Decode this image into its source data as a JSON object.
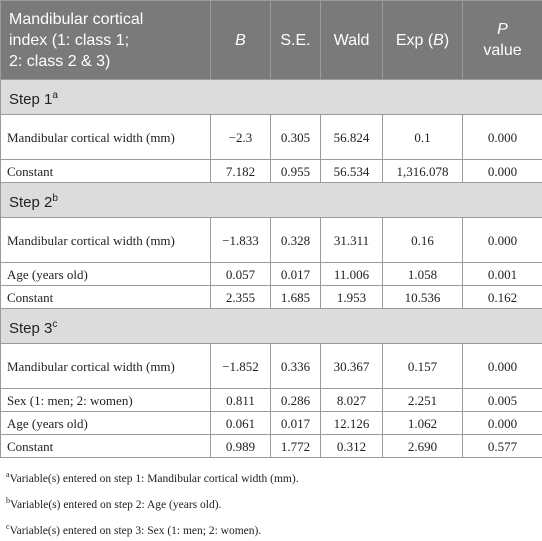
{
  "header": {
    "col1": [
      "Mandibular cortical",
      "index (1: class 1;",
      "2: class 2 & 3)"
    ],
    "b": "B",
    "se": "S.E.",
    "wald": "Wald",
    "exp_prefix": "Exp (",
    "exp_var": "B",
    "exp_suffix": ")",
    "p_var": "P",
    "p_suffix": "value"
  },
  "steps": [
    {
      "name": "Step 1",
      "mark": "a",
      "rows": [
        {
          "label": "Mandibular cortical width (mm)",
          "b": "−2.3",
          "se": "0.305",
          "wald": "56.824",
          "exp": "0.1",
          "p": "0.000"
        },
        {
          "label": "Constant",
          "b": "7.182",
          "se": "0.955",
          "wald": "56.534",
          "exp": "1,316.078",
          "p": "0.000"
        }
      ]
    },
    {
      "name": "Step 2",
      "mark": "b",
      "rows": [
        {
          "label": "Mandibular cortical width (mm)",
          "b": "−1.833",
          "se": "0.328",
          "wald": "31.311",
          "exp": "0.16",
          "p": "0.000"
        },
        {
          "label": "Age (years old)",
          "b": "0.057",
          "se": "0.017",
          "wald": "11.006",
          "exp": "1.058",
          "p": "0.001"
        },
        {
          "label": "Constant",
          "b": "2.355",
          "se": "1.685",
          "wald": "1.953",
          "exp": "10.536",
          "p": "0.162"
        }
      ]
    },
    {
      "name": "Step 3",
      "mark": "c",
      "rows": [
        {
          "label": "Mandibular cortical width (mm)",
          "b": "−1.852",
          "se": "0.336",
          "wald": "30.367",
          "exp": "0.157",
          "p": "0.000"
        },
        {
          "label": "Sex (1: men; 2: women)",
          "b": "0.811",
          "se": "0.286",
          "wald": "8.027",
          "exp": "2.251",
          "p": "0.005"
        },
        {
          "label": "Age (years old)",
          "b": "0.061",
          "se": "0.017",
          "wald": "12.126",
          "exp": "1.062",
          "p": "0.000"
        },
        {
          "label": "Constant",
          "b": "0.989",
          "se": "1.772",
          "wald": "0.312",
          "exp": "2.690",
          "p": "0.577"
        }
      ]
    }
  ],
  "notes": [
    {
      "mark": "a",
      "text": "Variable(s) entered on step 1: Mandibular cortical width (mm)."
    },
    {
      "mark": "b",
      "text": "Variable(s) entered on step 2: Age (years old)."
    },
    {
      "mark": "c",
      "text": "Variable(s) entered on step 3: Sex (1: men; 2: women)."
    }
  ]
}
